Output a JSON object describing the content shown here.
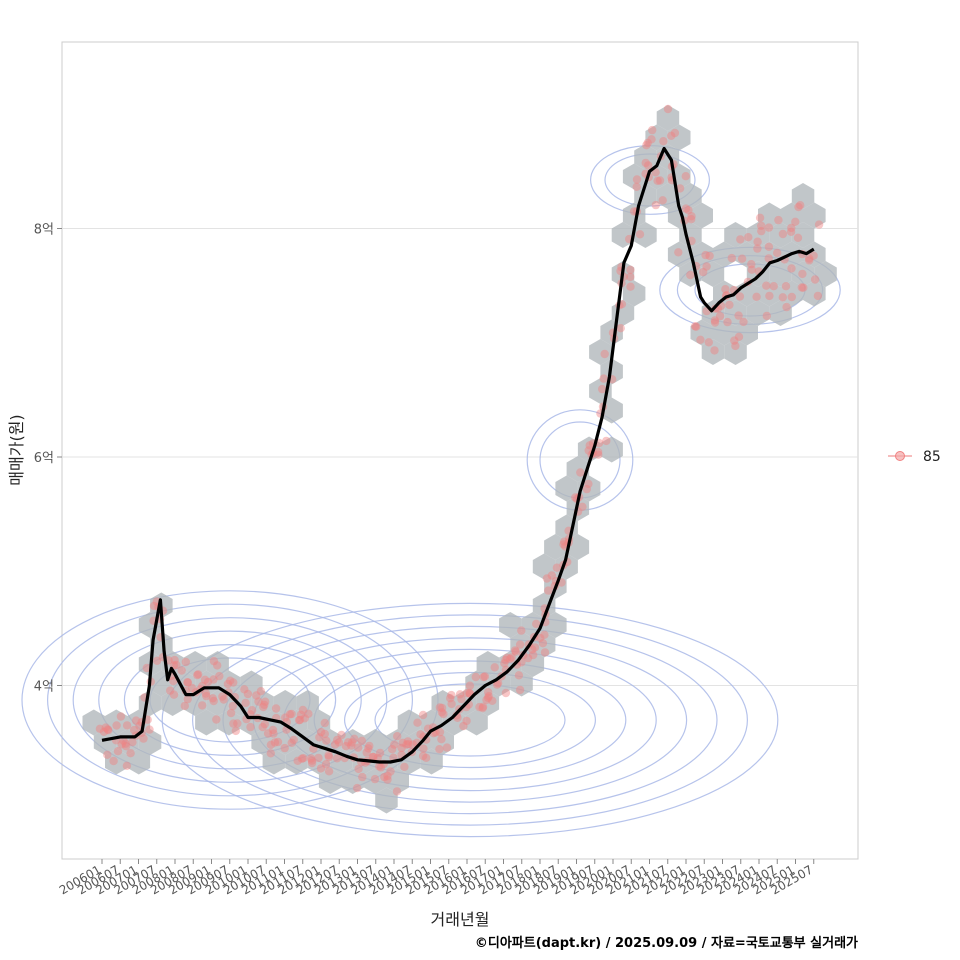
{
  "chart_data": {
    "type": "line",
    "title": "",
    "xlabel": "거래년월",
    "ylabel": "매매가(원)",
    "caption": "©디아파트(dapt.kr) / 2025.09.09 / 자료=국토교통부 실거래가",
    "ylim": [
      2.6,
      9.8
    ],
    "y_ticks": [
      {
        "value": 4,
        "label": "4억"
      },
      {
        "value": 6,
        "label": "6억"
      },
      {
        "value": 8,
        "label": "8억"
      }
    ],
    "x_ticks": [
      "200601",
      "200607",
      "200701",
      "200707",
      "200801",
      "200807",
      "200901",
      "200907",
      "201001",
      "201007",
      "201101",
      "201107",
      "201201",
      "201207",
      "201301",
      "201307",
      "201401",
      "201407",
      "201501",
      "201507",
      "201601",
      "201607",
      "201701",
      "201707",
      "201801",
      "201807",
      "201901",
      "201907",
      "202001",
      "202007",
      "202101",
      "202107",
      "202201",
      "202207",
      "202301",
      "202307",
      "202401",
      "202407",
      "202501",
      "202507"
    ],
    "grid": true,
    "legend": {
      "position": "right",
      "entries": [
        {
          "label": "85",
          "color": "#f4a6a6"
        }
      ]
    },
    "colors": {
      "line": "#000000",
      "points": "#f08080",
      "hexbin": "#b0b6ba",
      "contour": "#a9b9e8",
      "grid": "#e3e3e3"
    },
    "series": [
      {
        "style": "moving-average-line",
        "x": [
          2006.0,
          2006.5,
          2006.9,
          2007.1,
          2007.3,
          2007.4,
          2007.6,
          2007.7,
          2007.8,
          2007.9,
          2008.0,
          2008.3,
          2008.5,
          2008.8,
          2009.0,
          2009.2,
          2009.5,
          2009.8,
          2010.0,
          2010.3,
          2010.6,
          2010.9,
          2011.2,
          2011.5,
          2011.8,
          2012.1,
          2012.4,
          2012.7,
          2013.0,
          2013.3,
          2013.6,
          2013.9,
          2014.2,
          2014.5,
          2014.8,
          2015.0,
          2015.3,
          2015.6,
          2015.9,
          2016.2,
          2016.5,
          2016.8,
          2017.1,
          2017.4,
          2017.7,
          2018.0,
          2018.3,
          2018.5,
          2018.7,
          2018.9,
          2019.1,
          2019.3,
          2019.5,
          2019.7,
          2019.9,
          2020.1,
          2020.3,
          2020.5,
          2020.7,
          2020.9,
          2021.0,
          2021.2,
          2021.4,
          2021.6,
          2021.8,
          2021.9,
          2022.0,
          2022.2,
          2022.4,
          2022.5,
          2022.7,
          2022.9,
          2023.1,
          2023.3,
          2023.5,
          2023.7,
          2023.9,
          2024.1,
          2024.3,
          2024.5,
          2024.7,
          2024.9,
          2025.1,
          2025.3,
          2025.5
        ],
        "values": [
          3.52,
          3.55,
          3.55,
          3.6,
          4.0,
          4.4,
          4.75,
          4.3,
          4.05,
          4.15,
          4.1,
          3.92,
          3.92,
          3.98,
          3.98,
          3.98,
          3.92,
          3.82,
          3.72,
          3.72,
          3.7,
          3.68,
          3.62,
          3.55,
          3.48,
          3.45,
          3.42,
          3.38,
          3.35,
          3.34,
          3.33,
          3.33,
          3.35,
          3.42,
          3.52,
          3.6,
          3.65,
          3.72,
          3.82,
          3.92,
          4.0,
          4.05,
          4.12,
          4.22,
          4.35,
          4.5,
          4.75,
          4.92,
          5.1,
          5.4,
          5.7,
          5.9,
          6.1,
          6.35,
          6.7,
          7.2,
          7.7,
          7.85,
          8.2,
          8.4,
          8.5,
          8.55,
          8.7,
          8.6,
          8.2,
          8.1,
          7.95,
          7.7,
          7.4,
          7.35,
          7.28,
          7.35,
          7.4,
          7.42,
          7.48,
          7.52,
          7.56,
          7.62,
          7.7,
          7.72,
          7.75,
          7.78,
          7.8,
          7.78,
          7.82
        ]
      }
    ]
  }
}
